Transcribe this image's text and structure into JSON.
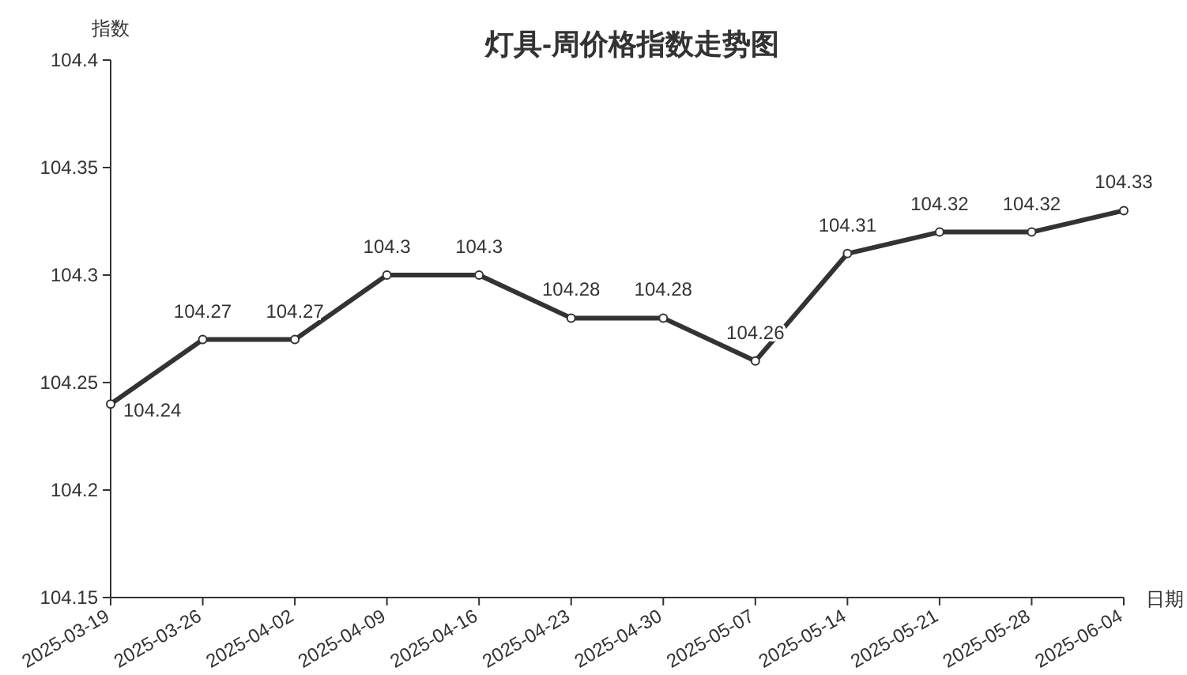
{
  "chart_data": {
    "type": "line",
    "title": "灯具-周价格指数走势图",
    "xlabel": "日期",
    "ylabel": "指数",
    "categories": [
      "2025-03-19",
      "2025-03-26",
      "2025-04-02",
      "2025-04-09",
      "2025-04-16",
      "2025-04-23",
      "2025-04-30",
      "2025-05-07",
      "2025-05-14",
      "2025-05-21",
      "2025-05-28",
      "2025-06-04"
    ],
    "series": [
      {
        "color": "#333333",
        "values": [
          104.24,
          104.27,
          104.27,
          104.3,
          104.3,
          104.28,
          104.28,
          104.26,
          104.31,
          104.32,
          104.32,
          104.33
        ]
      }
    ],
    "ylim": [
      104.15,
      104.4
    ],
    "yticks": [
      104.15,
      104.2,
      104.25,
      104.3,
      104.35,
      104.4
    ],
    "data_labels": true,
    "marker": "circle",
    "grid": false
  }
}
